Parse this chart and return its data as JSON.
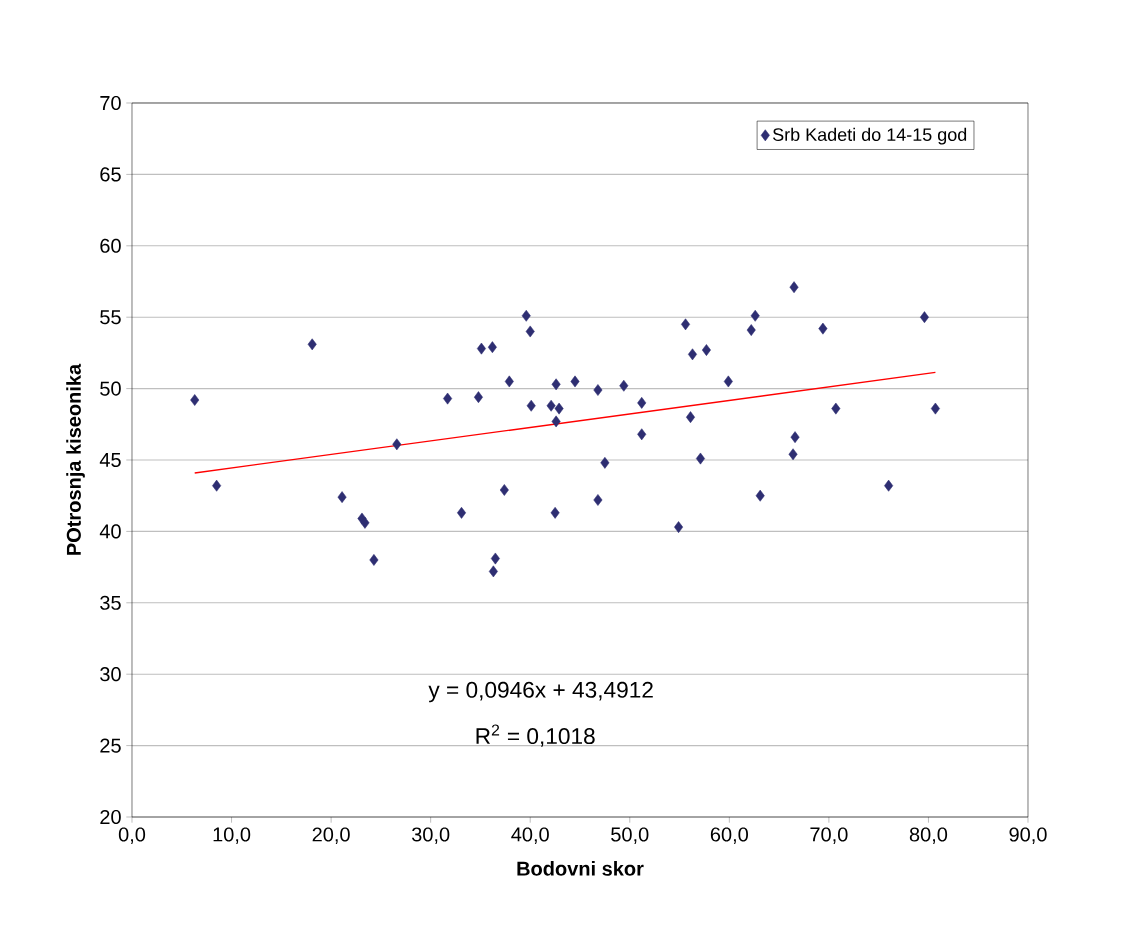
{
  "chart_data": {
    "type": "scatter",
    "xlabel": "Bodovni skor",
    "ylabel": "POtrosnja kiseonika",
    "xlim": [
      0,
      90
    ],
    "ylim": [
      20,
      70
    ],
    "xticks": [
      {
        "value": 0,
        "label": "0,0"
      },
      {
        "value": 10,
        "label": "10,0"
      },
      {
        "value": 20,
        "label": "20,0"
      },
      {
        "value": 30,
        "label": "30,0"
      },
      {
        "value": 40,
        "label": "40,0"
      },
      {
        "value": 50,
        "label": "50,0"
      },
      {
        "value": 60,
        "label": "60,0"
      },
      {
        "value": 70,
        "label": "70,0"
      },
      {
        "value": 80,
        "label": "80,0"
      },
      {
        "value": 90,
        "label": "90,0"
      }
    ],
    "yticks": [
      20,
      25,
      30,
      35,
      40,
      45,
      50,
      55,
      60,
      65,
      70
    ],
    "grid": "y",
    "legend": "top right",
    "marker": "diamond",
    "series": [
      {
        "name": "Srb Kadeti do 14-15 god",
        "color": "#2e2e72",
        "x": [
          6.3,
          8.5,
          18.1,
          21.1,
          23.1,
          23.4,
          24.3,
          26.6,
          31.7,
          33.1,
          34.8,
          35.1,
          36.2,
          36.3,
          36.5,
          37.4,
          37.9,
          39.6,
          40.0,
          40.1,
          42.1,
          42.6,
          42.5,
          42.6,
          42.9,
          44.5,
          46.8,
          46.8,
          47.5,
          49.4,
          51.2,
          51.2,
          54.9,
          55.6,
          56.1,
          56.3,
          57.1,
          57.7,
          59.9,
          62.2,
          62.6,
          63.1,
          66.4,
          66.5,
          66.6,
          69.4,
          70.7,
          76.0,
          79.6,
          80.7
        ],
        "values": [
          49.2,
          43.2,
          53.1,
          42.4,
          40.9,
          40.6,
          38.0,
          46.1,
          49.3,
          41.3,
          49.4,
          52.8,
          52.9,
          37.2,
          38.1,
          42.9,
          50.5,
          55.1,
          54.0,
          48.8,
          48.8,
          47.7,
          41.3,
          50.3,
          48.6,
          50.5,
          49.9,
          42.2,
          44.8,
          50.2,
          49.0,
          46.8,
          40.3,
          54.5,
          48.0,
          52.4,
          45.1,
          52.7,
          50.5,
          54.1,
          55.1,
          42.5,
          45.4,
          57.1,
          46.6,
          54.2,
          48.6,
          43.2,
          55.0,
          48.6
        ]
      },
      {
        "type": "line",
        "color": "#ff0000",
        "marker": "none",
        "x": [
          6.3,
          80.7
        ],
        "values": [
          44.09,
          51.13
        ]
      }
    ],
    "annotations": [
      "y = 0,0946x + 43,4912",
      "R$^{2}$ = 0,1018"
    ]
  }
}
